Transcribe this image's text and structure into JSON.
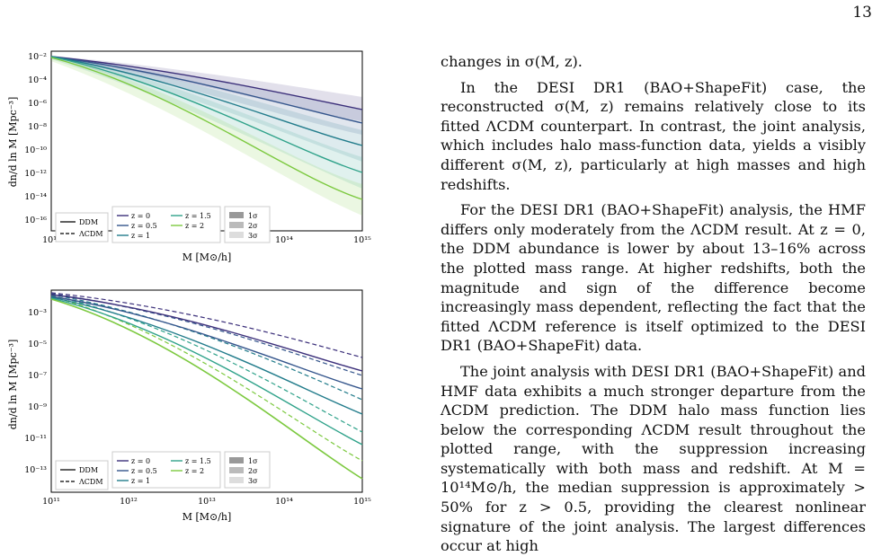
{
  "page": {
    "number": "13"
  },
  "figure": {
    "panels": [
      {
        "id": "top",
        "y_label": "dn/d ln M [Mpc⁻³]",
        "x_label": "M [M⊙/h]",
        "y_ticks": [
          "10⁻²",
          "10⁻⁴",
          "10⁻⁶",
          "10⁻⁸",
          "10⁻¹⁰",
          "10⁻¹²",
          "10⁻¹⁴",
          "10⁻¹⁶"
        ],
        "x_ticks": [
          "10¹¹",
          "10¹²",
          "10¹³",
          "10¹⁴",
          "10¹⁵"
        ],
        "legend_model": [
          "DDM",
          "ΛCDM"
        ],
        "legend_z": [
          "z = 0",
          "z = 0.5",
          "z = 1",
          "z = 1.5",
          "z = 2"
        ],
        "legend_sigma": [
          "1σ",
          "2σ",
          "3σ"
        ]
      },
      {
        "id": "bottom",
        "y_label": "dn/d ln M [Mpc⁻³]",
        "x_label": "M [M⊙/h]",
        "y_ticks": [
          "10⁻³",
          "10⁻⁵",
          "10⁻⁷",
          "10⁻⁹",
          "10⁻¹¹",
          "10⁻¹³"
        ],
        "x_ticks": [
          "10¹¹",
          "10¹²",
          "10¹³",
          "10¹⁴",
          "10¹⁵"
        ],
        "legend_model": [
          "DDM",
          "ΛCDM"
        ],
        "legend_z": [
          "z = 0",
          "z = 0.5",
          "z = 1",
          "z = 1.5",
          "z = 2"
        ],
        "legend_sigma": [
          "1σ",
          "2σ",
          "3σ"
        ]
      }
    ],
    "series_colors": [
      "#3b2f7a",
      "#34558c",
      "#227c8b",
      "#2fa28a",
      "#7cc93f"
    ]
  },
  "text": {
    "p1": "changes in σ(M, z).",
    "p2": "In the DESI DR1 (BAO+ShapeFit) case, the reconstructed σ(M, z) remains relatively close to its fitted ΛCDM counterpart. In contrast, the joint analysis, which includes halo mass-function data, yields a visibly different σ(M, z), particularly at high masses and high redshifts.",
    "p3": "For the DESI DR1 (BAO+ShapeFit) analysis, the HMF differs only moderately from the ΛCDM result. At z = 0, the DDM abundance is lower by about 13–16% across the plotted mass range. At higher redshifts, both the magnitude and sign of the difference become increasingly mass dependent, reflecting the fact that the fitted ΛCDM reference is itself optimized to the DESI DR1 (BAO+ShapeFit) data.",
    "p4": "The joint analysis with DESI DR1 (BAO+ShapeFit) and HMF data exhibits a much stronger departure from the ΛCDM prediction. The DDM halo mass function lies below the corresponding ΛCDM result throughout the plotted range, with the suppression increasing systematically with both mass and redshift. At M = 10¹⁴M⊙/h, the median suppression is approximately > 50% for z > 0.5, providing the clearest nonlinear signature of the joint analysis. The largest differences occur at high"
  }
}
